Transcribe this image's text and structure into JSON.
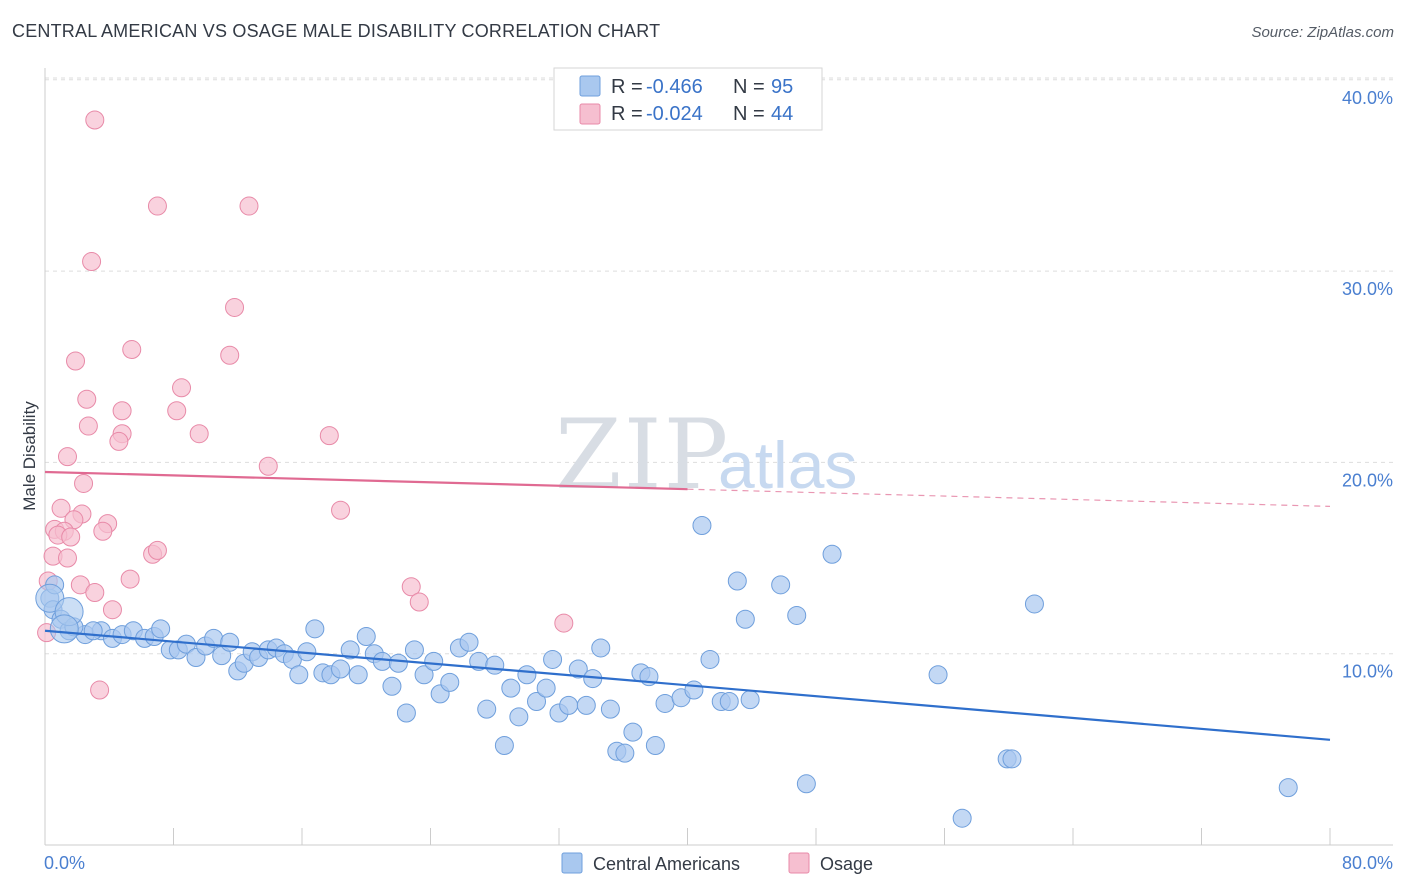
{
  "title": "CENTRAL AMERICAN VS OSAGE MALE DISABILITY CORRELATION CHART",
  "source": "Source: ZipAtlas.com",
  "watermark": {
    "part1": "ZIP",
    "part2": "atlas"
  },
  "colors": {
    "blue_fill": "#a9c8ef",
    "blue_stroke": "#6f9fdc",
    "blue_line": "#2f6fcc",
    "pink_fill": "#f6bfd0",
    "pink_stroke": "#e88aa8",
    "pink_line": "#e06a92",
    "tick_label": "#4a7fd0",
    "grid": "#dddddd"
  },
  "legend": {
    "rows": [
      {
        "r_label": "R =",
        "r_value": "-0.466",
        "n_label": "N =",
        "n_value": "95"
      },
      {
        "r_label": "R =",
        "r_value": "-0.024",
        "n_label": "N =",
        "n_value": "44"
      }
    ]
  },
  "bottom_legend": [
    "Central Americans",
    "Osage"
  ],
  "chart_data": {
    "type": "scatter",
    "title": "CENTRAL AMERICAN VS OSAGE MALE DISABILITY CORRELATION CHART",
    "xlabel": "",
    "ylabel": "Male Disability",
    "xlim": [
      0,
      80
    ],
    "ylim": [
      0,
      40
    ],
    "x_tick_labels": [
      "0.0%",
      "80.0%"
    ],
    "y_ticks": [
      10,
      20,
      30,
      40
    ],
    "y_tick_labels": [
      "10.0%",
      "20.0%",
      "30.0%",
      "40.0%"
    ],
    "grid": true,
    "legend_position": "top-center",
    "series": [
      {
        "name": "Central Americans",
        "r": -0.466,
        "n": 95,
        "trend": {
          "x": [
            0,
            80
          ],
          "y": [
            11.2,
            5.5
          ]
        },
        "points": [
          [
            0.3,
            12.9
          ],
          [
            0.5,
            12.3
          ],
          [
            1.0,
            11.8
          ],
          [
            1.5,
            11.2
          ],
          [
            2.5,
            11.0
          ],
          [
            3.5,
            11.2
          ],
          [
            4.2,
            10.8
          ],
          [
            4.8,
            11.0
          ],
          [
            5.5,
            11.2
          ],
          [
            6.2,
            10.8
          ],
          [
            6.8,
            10.9
          ],
          [
            7.2,
            11.3
          ],
          [
            7.8,
            10.2
          ],
          [
            8.3,
            10.2
          ],
          [
            8.8,
            10.5
          ],
          [
            9.4,
            9.8
          ],
          [
            10.0,
            10.4
          ],
          [
            10.5,
            10.8
          ],
          [
            11.0,
            9.9
          ],
          [
            11.5,
            10.6
          ],
          [
            12.0,
            9.1
          ],
          [
            12.4,
            9.5
          ],
          [
            12.9,
            10.1
          ],
          [
            13.3,
            9.8
          ],
          [
            13.9,
            10.2
          ],
          [
            14.4,
            10.3
          ],
          [
            14.9,
            10.0
          ],
          [
            15.4,
            9.7
          ],
          [
            15.8,
            8.9
          ],
          [
            16.3,
            10.1
          ],
          [
            16.8,
            11.3
          ],
          [
            17.3,
            9.0
          ],
          [
            17.8,
            8.9
          ],
          [
            18.4,
            9.2
          ],
          [
            19.0,
            10.2
          ],
          [
            19.5,
            8.9
          ],
          [
            20.0,
            10.9
          ],
          [
            20.5,
            10.0
          ],
          [
            21.0,
            9.6
          ],
          [
            21.6,
            8.3
          ],
          [
            22.0,
            9.5
          ],
          [
            22.5,
            6.9
          ],
          [
            23.0,
            10.2
          ],
          [
            23.6,
            8.9
          ],
          [
            24.2,
            9.6
          ],
          [
            24.6,
            7.9
          ],
          [
            25.2,
            8.5
          ],
          [
            25.8,
            10.3
          ],
          [
            26.4,
            10.6
          ],
          [
            27.0,
            9.6
          ],
          [
            27.5,
            7.1
          ],
          [
            28.0,
            9.4
          ],
          [
            28.6,
            5.2
          ],
          [
            29.0,
            8.2
          ],
          [
            29.5,
            6.7
          ],
          [
            30.0,
            8.9
          ],
          [
            30.6,
            7.5
          ],
          [
            31.2,
            8.2
          ],
          [
            31.6,
            9.7
          ],
          [
            32.0,
            6.9
          ],
          [
            32.6,
            7.3
          ],
          [
            33.2,
            9.2
          ],
          [
            33.7,
            7.3
          ],
          [
            34.1,
            8.7
          ],
          [
            34.6,
            10.3
          ],
          [
            35.2,
            7.1
          ],
          [
            35.6,
            4.9
          ],
          [
            36.1,
            4.8
          ],
          [
            36.6,
            5.9
          ],
          [
            37.1,
            9.0
          ],
          [
            37.6,
            8.8
          ],
          [
            38.0,
            5.2
          ],
          [
            38.6,
            7.4
          ],
          [
            39.6,
            7.7
          ],
          [
            40.4,
            8.1
          ],
          [
            40.9,
            16.7
          ],
          [
            41.4,
            9.7
          ],
          [
            42.1,
            7.5
          ],
          [
            42.6,
            7.5
          ],
          [
            43.1,
            13.8
          ],
          [
            43.6,
            11.8
          ],
          [
            43.9,
            7.6
          ],
          [
            45.8,
            13.6
          ],
          [
            46.8,
            12.0
          ],
          [
            47.4,
            3.2
          ],
          [
            49.0,
            15.2
          ],
          [
            55.6,
            8.9
          ],
          [
            57.1,
            1.4
          ],
          [
            59.9,
            4.5
          ],
          [
            60.2,
            4.5
          ],
          [
            61.6,
            12.6
          ],
          [
            77.4,
            3.0
          ],
          [
            0.6,
            13.6
          ],
          [
            1.8,
            11.4
          ],
          [
            3.0,
            11.2
          ]
        ],
        "large_points": [
          [
            0.3,
            12.9
          ],
          [
            1.5,
            12.2
          ],
          [
            1.2,
            11.3
          ]
        ]
      },
      {
        "name": "Osage",
        "r": -0.024,
        "n": 44,
        "trend": {
          "x": [
            0,
            40
          ],
          "y": [
            19.5,
            18.6
          ],
          "x_dashed_end": 80,
          "y_dashed_end": 17.7
        },
        "points": [
          [
            3.1,
            37.9
          ],
          [
            7.0,
            33.4
          ],
          [
            12.7,
            33.4
          ],
          [
            2.9,
            30.5
          ],
          [
            11.8,
            28.1
          ],
          [
            5.4,
            25.9
          ],
          [
            11.5,
            25.6
          ],
          [
            1.9,
            25.3
          ],
          [
            8.5,
            23.9
          ],
          [
            2.6,
            23.3
          ],
          [
            4.8,
            22.7
          ],
          [
            8.2,
            22.7
          ],
          [
            2.7,
            21.9
          ],
          [
            4.8,
            21.5
          ],
          [
            9.6,
            21.5
          ],
          [
            17.7,
            21.4
          ],
          [
            4.6,
            21.1
          ],
          [
            1.4,
            20.3
          ],
          [
            13.9,
            19.8
          ],
          [
            2.4,
            18.9
          ],
          [
            1.0,
            17.6
          ],
          [
            18.4,
            17.5
          ],
          [
            2.3,
            17.3
          ],
          [
            1.8,
            17.0
          ],
          [
            3.9,
            16.8
          ],
          [
            0.6,
            16.5
          ],
          [
            1.2,
            16.4
          ],
          [
            3.6,
            16.4
          ],
          [
            0.8,
            16.2
          ],
          [
            1.6,
            16.1
          ],
          [
            6.7,
            15.2
          ],
          [
            7.0,
            15.4
          ],
          [
            0.5,
            15.1
          ],
          [
            1.4,
            15.0
          ],
          [
            5.3,
            13.9
          ],
          [
            0.2,
            13.8
          ],
          [
            2.2,
            13.6
          ],
          [
            22.8,
            13.5
          ],
          [
            3.1,
            13.2
          ],
          [
            23.3,
            12.7
          ],
          [
            4.2,
            12.3
          ],
          [
            32.3,
            11.6
          ],
          [
            3.4,
            8.1
          ],
          [
            0.1,
            11.1
          ]
        ]
      }
    ]
  }
}
